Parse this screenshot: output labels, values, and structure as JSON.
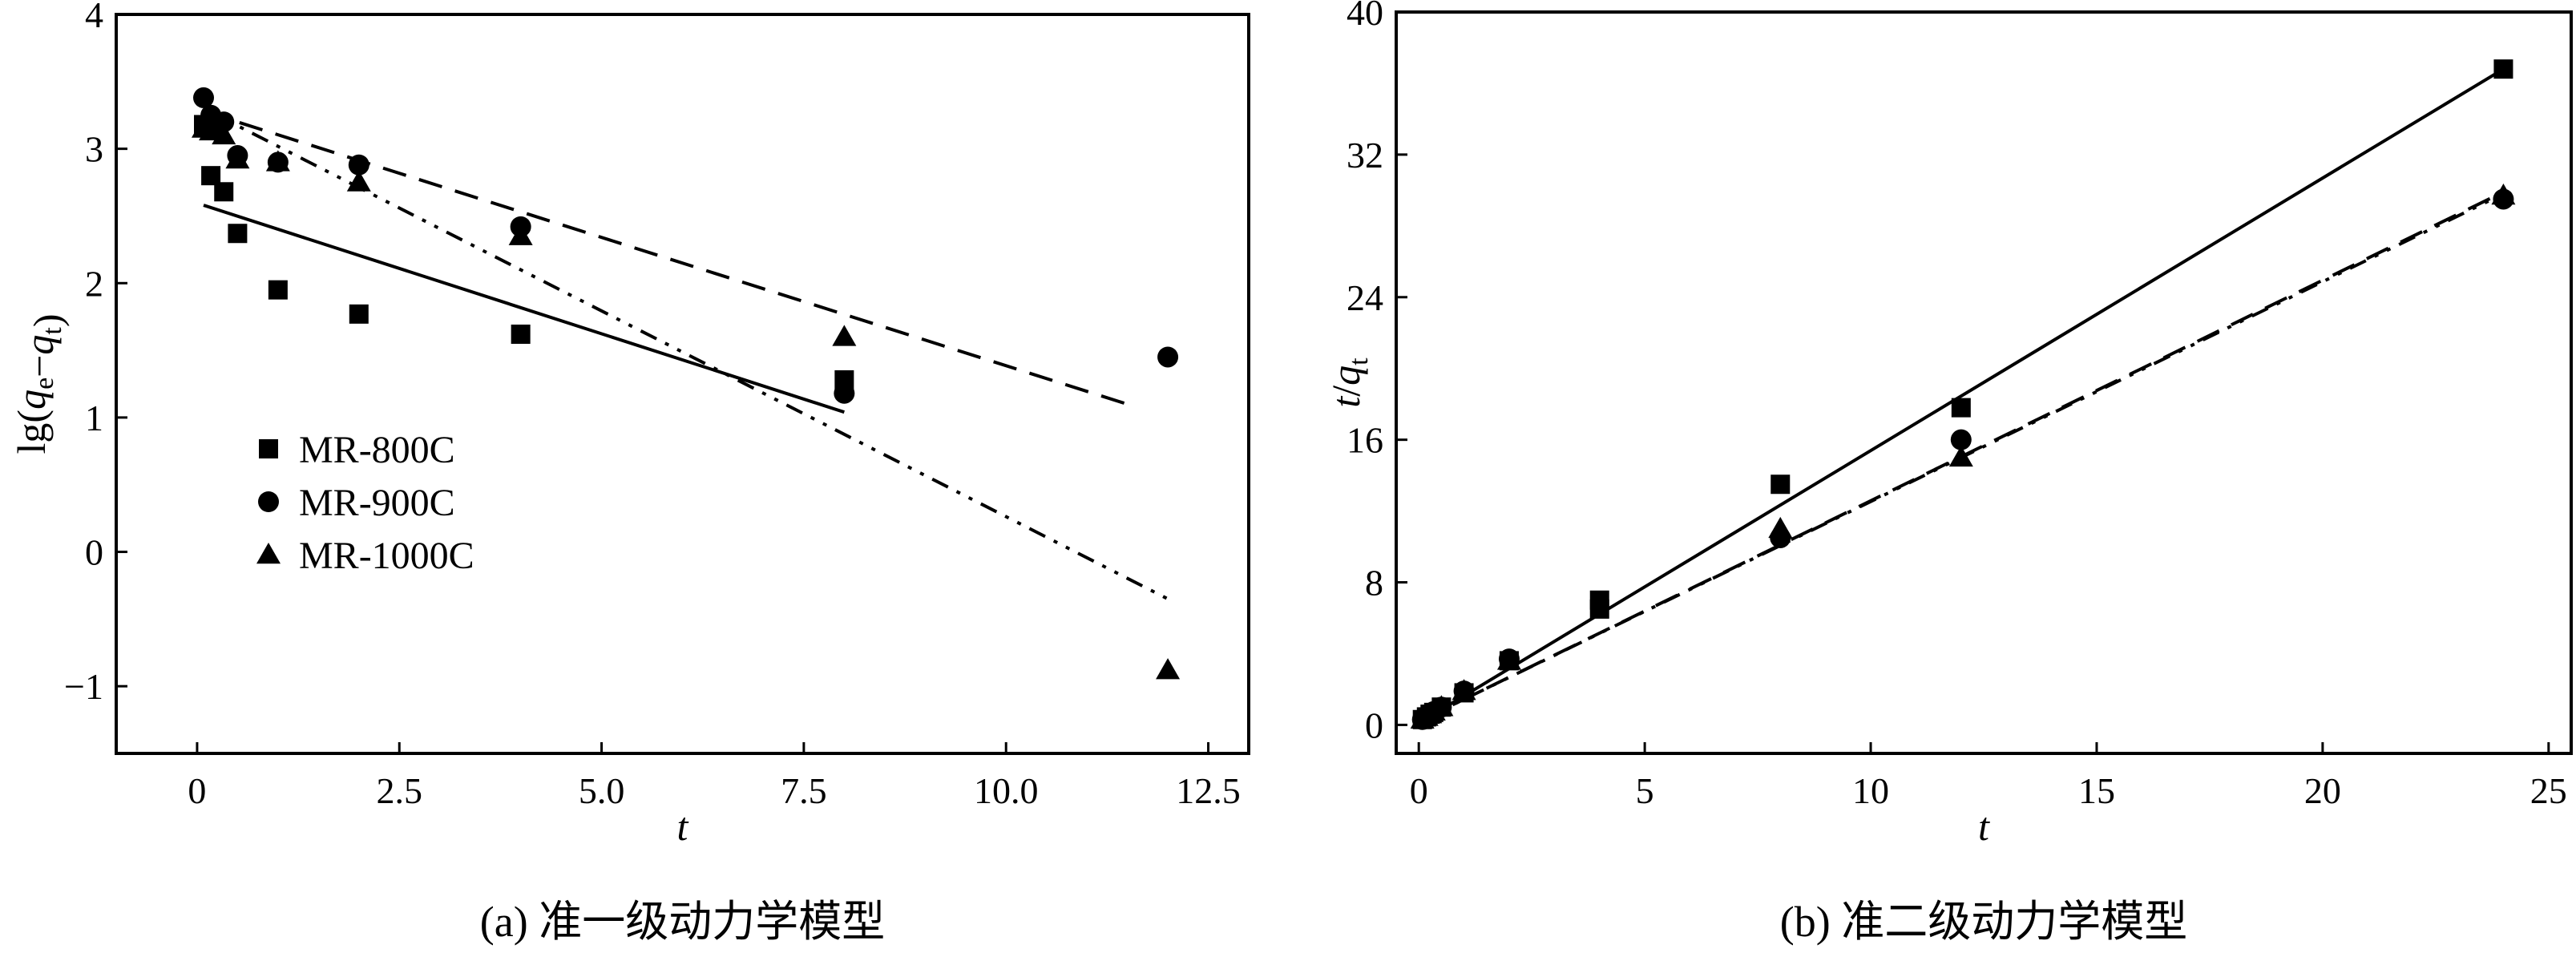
{
  "chart_data": [
    {
      "type": "scatter",
      "panel": "a",
      "caption": "(a) 准一级动力学模型",
      "xlabel": "t",
      "ylabel": "lg(q_e−q_t)",
      "xlim": [
        -1,
        13
      ],
      "ylim": [
        -1.5,
        4
      ],
      "xticks": [
        0,
        2.5,
        5,
        7.5,
        10,
        12.5
      ],
      "xtick_labels": [
        "0",
        "2.5",
        "5.0",
        "7.5",
        "10.0",
        "12.5"
      ],
      "yticks": [
        -1,
        0,
        1,
        2,
        3,
        4
      ],
      "ytick_labels": [
        "−1",
        "0",
        "1",
        "2",
        "3",
        "4"
      ],
      "legend_position": "lower-left",
      "grid": false,
      "series": [
        {
          "name": "MR-800C",
          "marker": "square",
          "line_style": "solid",
          "x": [
            0.08,
            0.17,
            0.25,
            0.33,
            0.5,
            1,
            2,
            4,
            8
          ],
          "y": [
            3.18,
            2.8,
            3.15,
            2.68,
            2.37,
            1.95,
            1.77,
            1.62,
            1.28
          ],
          "fit": [
            [
              0.08,
              2.58
            ],
            [
              8,
              1.04
            ]
          ]
        },
        {
          "name": "MR-900C",
          "marker": "circle",
          "line_style": "dashed",
          "x": [
            0.08,
            0.17,
            0.25,
            0.33,
            0.5,
            1,
            2,
            4,
            8,
            12
          ],
          "y": [
            3.38,
            3.25,
            3.2,
            3.2,
            2.95,
            2.9,
            2.88,
            2.42,
            1.18,
            1.45
          ],
          "fit": [
            [
              0.08,
              3.28
            ],
            [
              11.6,
              1.08
            ]
          ]
        },
        {
          "name": "MR-1000C",
          "marker": "triangle",
          "line_style": "dash-dot-dot",
          "x": [
            0.08,
            0.17,
            0.25,
            0.33,
            0.5,
            1,
            2,
            4,
            8,
            12
          ],
          "y": [
            3.15,
            3.13,
            3.15,
            3.1,
            2.92,
            2.9,
            2.75,
            2.35,
            1.6,
            -0.88
          ],
          "fit": [
            [
              0.08,
              3.3
            ],
            [
              12,
              -0.35
            ]
          ]
        }
      ]
    },
    {
      "type": "scatter",
      "panel": "b",
      "caption": "(b) 准二级动力学模型",
      "xlabel": "t",
      "ylabel": "t/q_t",
      "xlim": [
        -0.5,
        25.5
      ],
      "ylim": [
        -1.6,
        40
      ],
      "xticks": [
        0,
        5,
        10,
        15,
        20,
        25
      ],
      "xtick_labels": [
        "0",
        "5",
        "10",
        "15",
        "20",
        "25"
      ],
      "yticks": [
        0,
        8,
        16,
        24,
        32,
        40
      ],
      "ytick_labels": [
        "0",
        "8",
        "16",
        "24",
        "32",
        "40"
      ],
      "grid": false,
      "series": [
        {
          "name": "MR-800C",
          "marker": "square",
          "line_style": "solid",
          "x": [
            0.08,
            0.17,
            0.25,
            0.33,
            0.5,
            1,
            2,
            4,
            4,
            8,
            12,
            24
          ],
          "y": [
            0.3,
            0.45,
            0.6,
            0.7,
            1.0,
            1.8,
            3.6,
            6.5,
            7.0,
            13.5,
            17.8,
            36.8
          ],
          "fit": [
            [
              0,
              0.1
            ],
            [
              24,
              36.8
            ]
          ]
        },
        {
          "name": "MR-900C",
          "marker": "circle",
          "line_style": "dashed",
          "x": [
            0.08,
            0.17,
            0.25,
            0.33,
            0.5,
            1,
            2,
            8,
            12,
            24
          ],
          "y": [
            0.3,
            0.45,
            0.6,
            0.75,
            1.0,
            1.9,
            3.7,
            10.5,
            16.0,
            29.5
          ],
          "fit": [
            [
              0,
              0.2
            ],
            [
              24,
              29.9
            ]
          ]
        },
        {
          "name": "MR-1000C",
          "marker": "triangle",
          "line_style": "dash-dot-dot",
          "x": [
            0.08,
            0.17,
            0.25,
            0.33,
            0.5,
            1,
            2,
            8,
            12,
            24
          ],
          "y": [
            0.3,
            0.45,
            0.6,
            0.75,
            1.0,
            1.9,
            3.6,
            11.0,
            15.0,
            29.7
          ],
          "fit": [
            [
              0,
              0.2
            ],
            [
              24,
              29.8
            ]
          ]
        }
      ]
    }
  ]
}
